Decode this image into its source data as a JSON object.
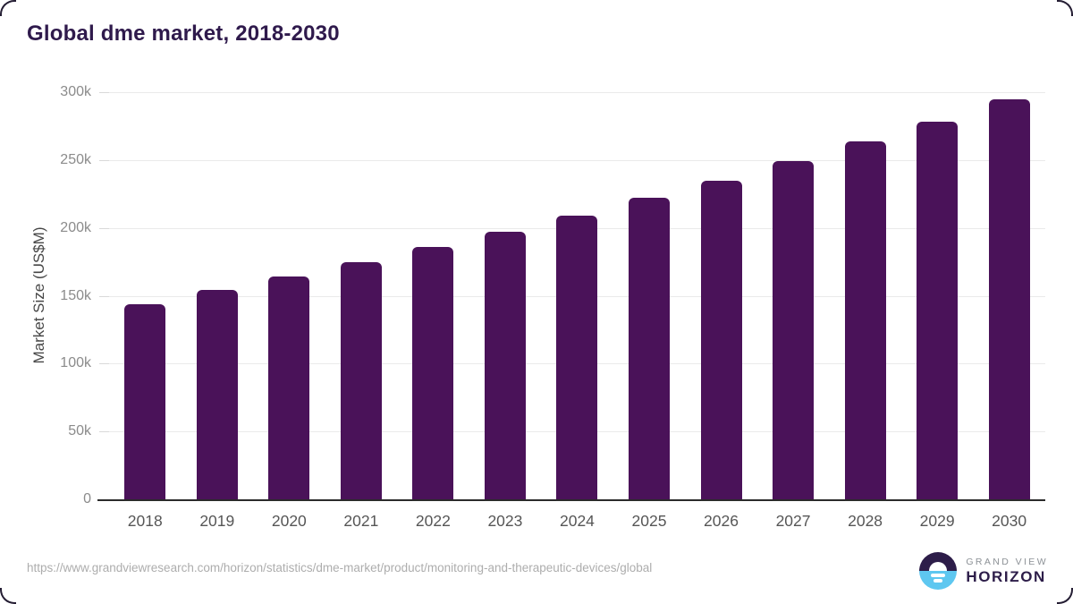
{
  "header": {
    "title": "Global dme market, 2018-2030"
  },
  "chart_data": {
    "type": "bar",
    "title": "Global dme market, 2018-2030",
    "xlabel": "",
    "ylabel": "Market Size (US$M)",
    "categories": [
      "2018",
      "2019",
      "2020",
      "2021",
      "2022",
      "2023",
      "2024",
      "2025",
      "2026",
      "2027",
      "2028",
      "2029",
      "2030"
    ],
    "values": [
      144000,
      154000,
      164000,
      175000,
      186000,
      197000,
      209000,
      222000,
      235000,
      249000,
      264000,
      278000,
      295000
    ],
    "ylim": [
      0,
      300000
    ],
    "yticks": [
      {
        "value": 0,
        "label": "0"
      },
      {
        "value": 50000,
        "label": "50k"
      },
      {
        "value": 100000,
        "label": "100k"
      },
      {
        "value": 150000,
        "label": "150k"
      },
      {
        "value": 200000,
        "label": "200k"
      },
      {
        "value": 250000,
        "label": "250k"
      },
      {
        "value": 300000,
        "label": "300k"
      }
    ],
    "grid": "horizontal",
    "legend_position": "none",
    "bar_color": "#4a1259"
  },
  "footer": {
    "source_url": "https://www.grandviewresearch.com/horizon/statistics/dme-market/product/monitoring-and-therapeutic-devices/global",
    "logo": {
      "top_text": "GRAND VIEW",
      "bottom_text": "HORIZON"
    }
  },
  "colors": {
    "bar": "#4a1259",
    "title": "#2f1a4c",
    "gridline": "#eaeaea",
    "axis_line": "#2b2b2b",
    "ytick_text": "#8b8b8b",
    "xtick_text": "#565656",
    "url_text": "#adadad",
    "logo_navy": "#2d1d49",
    "logo_blue": "#5ec7f0"
  }
}
